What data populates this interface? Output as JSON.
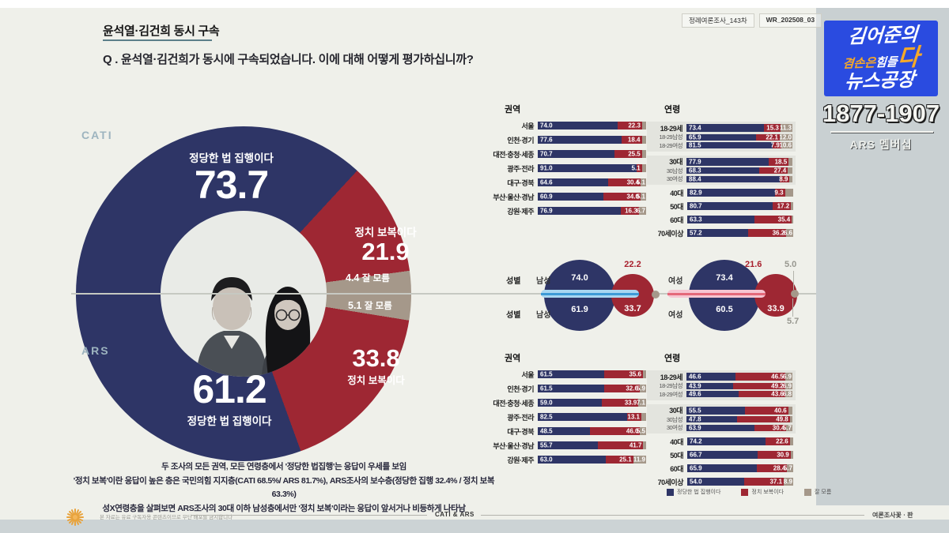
{
  "colors": {
    "navy": "#2e3566",
    "red": "#9e2733",
    "tan": "#a5988a",
    "slide_bg": "#eff0ea",
    "sidebar_bg": "#c9d0d2",
    "letterbox": "#ccd3d5",
    "title_underline": "#5c7f8a",
    "brand_blue": "#2a4be0",
    "brand_orange": "#f7a928",
    "band_blue": "#a9d7f1",
    "band_blue_line": "#3e9bd6",
    "band_pink": "#f6c6d2",
    "band_pink_line": "#e4697a",
    "dark_red_text": "#a81f2c",
    "gray_text": "#97978f"
  },
  "header": {
    "survey_tag": "정례여론조사_143차",
    "code_tag": "WR_202508_03",
    "title": "윤석열·김건희 동시 구속",
    "question": "Q . 윤석열·김건희가 동시에 구속되었습니다. 이에 대해 어떻게 평가하십니까?"
  },
  "survey_labels": {
    "cati": "CATI",
    "ars": "ARS"
  },
  "answer_labels": {
    "legal": "정당한 법 집행이다",
    "revenge": "정치 보복이다",
    "dk": "잘 모름"
  },
  "chart_data": [
    {
      "type": "pie",
      "name": "CATI 전체 응답 (상단 반원)",
      "categories": [
        "정당한 법 집행이다",
        "정치 보복이다",
        "잘 모름"
      ],
      "values": [
        "73.7",
        "21.9",
        "4.4"
      ]
    },
    {
      "type": "pie",
      "name": "ARS 전체 응답 (하단 반원)",
      "categories": [
        "정당한 법 집행이다",
        "정치 보복이다",
        "잘 모름"
      ],
      "values": [
        "61.2",
        "33.8",
        "5.1"
      ]
    },
    {
      "type": "bar",
      "title": "권역",
      "survey": "CATI",
      "series_names": [
        "정당한 법 집행이다",
        "정치 보복이다",
        "잘 모름"
      ],
      "rows": [
        {
          "label": "서울",
          "legal": "74.0",
          "revenge": "22.3",
          "dk": null
        },
        {
          "label": "인천·경기",
          "legal": "77.6",
          "revenge": "18.4",
          "dk": null
        },
        {
          "label": "대전·충청·세종",
          "legal": "70.7",
          "revenge": "25.5",
          "dk": null
        },
        {
          "label": "광주·전라",
          "legal": "91.0",
          "revenge": "5.1",
          "dk": null
        },
        {
          "label": "대구·경북",
          "legal": "64.6",
          "revenge": "30.4",
          "dk": "5.1"
        },
        {
          "label": "부산·울산·경남",
          "legal": "60.9",
          "revenge": "34.0",
          "dk": "5.1"
        },
        {
          "label": "강원·제주",
          "legal": "76.9",
          "revenge": "16.3",
          "dk": "6.7"
        }
      ]
    },
    {
      "type": "bar",
      "title": "연령",
      "survey": "CATI",
      "series_names": [
        "정당한 법 집행이다",
        "정치 보복이다",
        "잘 모름"
      ],
      "highlights": [
        [
          0,
          2
        ],
        [
          3,
          5
        ]
      ],
      "rows": [
        {
          "label": "18-29세",
          "legal": "73.4",
          "revenge": "15.3",
          "dk": "11.3"
        },
        {
          "label": "18-29남성",
          "legal": "65.9",
          "revenge": "22.1",
          "dk": "12.0",
          "sub": true
        },
        {
          "label": "18-29여성",
          "legal": "81.5",
          "revenge": "7.9",
          "dk": "10.6",
          "sub": true
        },
        {
          "label": "30대",
          "legal": "77.9",
          "revenge": "18.5",
          "dk": null
        },
        {
          "label": "30남성",
          "legal": "68.3",
          "revenge": "27.4",
          "dk": null,
          "sub": true
        },
        {
          "label": "30여성",
          "legal": "88.4",
          "revenge": "8.9",
          "dk": null,
          "sub": true
        },
        {
          "label": "40대",
          "legal": "82.9",
          "revenge": "9.3",
          "dk": null
        },
        {
          "label": "50대",
          "legal": "80.7",
          "revenge": "17.2",
          "dk": null
        },
        {
          "label": "60대",
          "legal": "63.3",
          "revenge": "35.4",
          "dk": null
        },
        {
          "label": "70세이상",
          "legal": "57.2",
          "revenge": "36.2",
          "dk": "6.6"
        }
      ]
    },
    {
      "type": "bar",
      "title": "권역",
      "survey": "ARS",
      "series_names": [
        "정당한 법 집행이다",
        "정치 보복이다",
        "잘 모름"
      ],
      "rows": [
        {
          "label": "서울",
          "legal": "61.5",
          "revenge": "35.6",
          "dk": null
        },
        {
          "label": "인천·경기",
          "legal": "61.5",
          "revenge": "32.6",
          "dk": "5.9"
        },
        {
          "label": "대전·충청·세종",
          "legal": "59.0",
          "revenge": "33.9",
          "dk": "7.1"
        },
        {
          "label": "광주·전라",
          "legal": "82.5",
          "revenge": "13.1",
          "dk": null
        },
        {
          "label": "대구·경북",
          "legal": "48.5",
          "revenge": "46.0",
          "dk": "5.5"
        },
        {
          "label": "부산·울산·경남",
          "legal": "55.7",
          "revenge": "41.7",
          "dk": null
        },
        {
          "label": "강원·제주",
          "legal": "63.0",
          "revenge": "25.1",
          "dk": "11.9"
        }
      ]
    },
    {
      "type": "bar",
      "title": "연령",
      "survey": "ARS",
      "series_names": [
        "정당한 법 집행이다",
        "정치 보복이다",
        "잘 모름"
      ],
      "highlights": [
        [
          0,
          2
        ],
        [
          3,
          5
        ]
      ],
      "rows": [
        {
          "label": "18-29세",
          "legal": "46.6",
          "revenge": "46.5",
          "dk": "6.9"
        },
        {
          "label": "18-29남성",
          "legal": "43.9",
          "revenge": "49.2",
          "dk": "6.9",
          "sub": true
        },
        {
          "label": "18-29여성",
          "legal": "49.6",
          "revenge": "43.6",
          "dk": "6.8",
          "sub": true
        },
        {
          "label": "30대",
          "legal": "55.5",
          "revenge": "40.6",
          "dk": null
        },
        {
          "label": "30남성",
          "legal": "47.8",
          "revenge": "49.8",
          "dk": null,
          "sub": true
        },
        {
          "label": "30여성",
          "legal": "63.9",
          "revenge": "30.4",
          "dk": "5.7",
          "sub": true
        },
        {
          "label": "40대",
          "legal": "74.2",
          "revenge": "22.6",
          "dk": null
        },
        {
          "label": "50대",
          "legal": "66.7",
          "revenge": "30.9",
          "dk": null
        },
        {
          "label": "60대",
          "legal": "65.9",
          "revenge": "28.4",
          "dk": "5.7"
        },
        {
          "label": "70세이상",
          "legal": "54.0",
          "revenge": "37.1",
          "dk": "8.9"
        }
      ]
    },
    {
      "type": "bubble",
      "title": "성별",
      "row_label": "성별",
      "rows": [
        {
          "survey": "CATI",
          "gender": "남성",
          "legal": "74.0",
          "revenge": "22.2",
          "dk": null
        },
        {
          "survey": "ARS",
          "gender": "남성",
          "legal": "61.9",
          "revenge": "33.7",
          "dk": null
        },
        {
          "survey": "CATI",
          "gender": "여성",
          "legal": "73.4",
          "revenge": "21.6",
          "dk": "5.0"
        },
        {
          "survey": "ARS",
          "gender": "여성",
          "legal": "60.5",
          "revenge": "33.9",
          "dk": "5.7"
        }
      ]
    }
  ],
  "legend": [
    {
      "label": "정당한 법 집행이다",
      "color": "#2e3566"
    },
    {
      "label": "정치 보복이다",
      "color": "#9e2733"
    },
    {
      "label": "잘 모름",
      "color": "#a5988a"
    }
  ],
  "notes": [
    "두 조사의 모든 권역, 모든 연령층에서 '정당한 법집행'는 응답이 우세를 보임",
    "'정치 보복'이란 응답이 높은 층은 국민의힘 지지층(CATI 68.5%/ ARS 81.7%), ARS조사의 보수층(정당한 집행 32.4% / 정치 보복 63.3%)",
    "성X연령층을 살펴보면 ARS조사의 30대 이하 남성층에서만 '정치 보복'이라는 응답이 앞서거나 비등하게 나타남"
  ],
  "branding": {
    "line1": "김어준의",
    "line2_orange": "겸손은",
    "line2_white": "힘들",
    "line2_big": "다",
    "line3": "뉴스공장",
    "phone": "1877-1907",
    "membership": "ARS 멤버십"
  },
  "footer": {
    "disclaimer": "본 자료는 유료 구독자용 콘텐츠이므로 무단 배포를 금지합니다",
    "method": "CATI & ARS",
    "source": "여론조사꽃ㆍ판"
  }
}
